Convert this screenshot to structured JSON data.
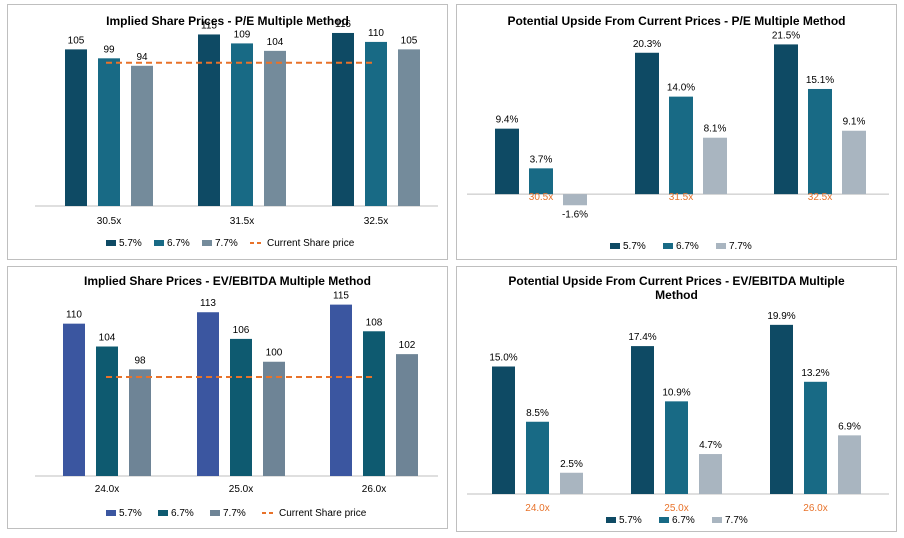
{
  "colors": {
    "pe_s1": "#0e4a64",
    "pe_s2": "#186a85",
    "pe_s3": "#748b9b",
    "up_s1": "#0e4a64",
    "up_s2": "#186a85",
    "up_s3": "#a9b5c0",
    "ev_s1": "#3b56a0",
    "ev_s2": "#0e5a70",
    "ev_s3": "#6e8496",
    "current": "#e8722a",
    "orange_label": "#e8722a"
  },
  "chart_data": [
    {
      "id": "pe_prices",
      "type": "bar",
      "title": "Implied Share Prices - P/E Multiple Method",
      "categories": [
        "30.5x",
        "31.5x",
        "32.5x"
      ],
      "series": [
        {
          "name": "5.7%",
          "values": [
            105,
            115,
            116
          ]
        },
        {
          "name": "6.7%",
          "values": [
            99,
            109,
            110
          ]
        },
        {
          "name": "7.7%",
          "values": [
            94,
            104,
            105
          ]
        }
      ],
      "data_labels": [
        [
          "105",
          "99",
          "94"
        ],
        [
          "115",
          "109",
          "104"
        ],
        [
          "116",
          "110",
          "105"
        ]
      ],
      "current_share_price": {
        "name": "Current Share price",
        "value": 96
      },
      "ylim": [
        0,
        120
      ],
      "legend_position": "bottom"
    },
    {
      "id": "pe_upside",
      "type": "bar",
      "title": "Potential Upside From Current Prices - P/E Multiple Method",
      "categories": [
        "30.5x",
        "31.5x",
        "32.5x"
      ],
      "series": [
        {
          "name": "5.7%",
          "values": [
            9.4,
            20.3,
            21.5
          ]
        },
        {
          "name": "6.7%",
          "values": [
            3.7,
            14.0,
            15.1
          ]
        },
        {
          "name": "7.7%",
          "values": [
            -1.6,
            8.1,
            9.1
          ]
        }
      ],
      "data_labels": [
        [
          "9.4%",
          "3.7%",
          "-1.6%"
        ],
        [
          "20.3%",
          "14.0%",
          "8.1%"
        ],
        [
          "21.5%",
          "15.1%",
          "9.1%"
        ]
      ],
      "ylim": [
        -3,
        24
      ],
      "legend_position": "bottom"
    },
    {
      "id": "ev_prices",
      "type": "bar",
      "title": "Implied Share Prices - EV/EBITDA Multiple Method",
      "categories": [
        "24.0x",
        "25.0x",
        "26.0x"
      ],
      "series": [
        {
          "name": "5.7%",
          "values": [
            110,
            113,
            115
          ]
        },
        {
          "name": "6.7%",
          "values": [
            104,
            106,
            108
          ]
        },
        {
          "name": "7.7%",
          "values": [
            98,
            100,
            102
          ]
        }
      ],
      "data_labels": [
        [
          "110",
          "104",
          "98"
        ],
        [
          "113",
          "106",
          "100"
        ],
        [
          "115",
          "108",
          "102"
        ]
      ],
      "current_share_price": {
        "name": "Current Share price",
        "value": 96
      },
      "ylim": [
        70,
        117
      ],
      "legend_position": "bottom"
    },
    {
      "id": "ev_upside",
      "type": "bar",
      "title": "Potential Upside From Current Prices - EV/EBITDA Multiple Method",
      "categories": [
        "24.0x",
        "25.0x",
        "26.0x"
      ],
      "series": [
        {
          "name": "5.7%",
          "values": [
            15.0,
            17.4,
            19.9
          ]
        },
        {
          "name": "6.7%",
          "values": [
            8.5,
            10.9,
            13.2
          ]
        },
        {
          "name": "7.7%",
          "values": [
            2.5,
            4.7,
            6.9
          ]
        }
      ],
      "data_labels": [
        [
          "15.0%",
          "8.5%",
          "2.5%"
        ],
        [
          "17.4%",
          "10.9%",
          "4.7%"
        ],
        [
          "19.9%",
          "13.2%",
          "6.9%"
        ]
      ],
      "ylim": [
        0,
        22
      ],
      "legend_position": "bottom"
    }
  ]
}
